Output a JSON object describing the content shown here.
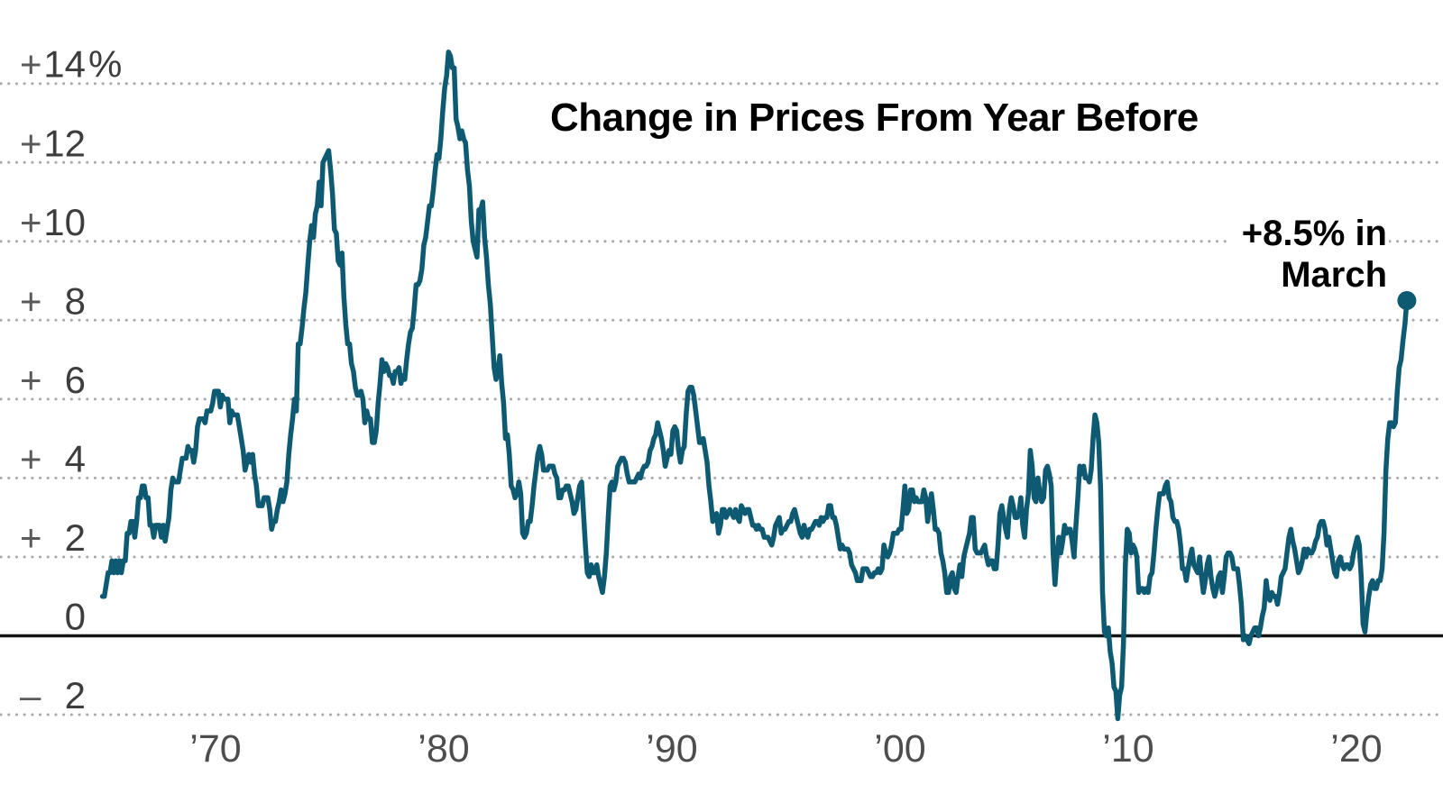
{
  "title": "Change in Prices From Year Before",
  "annotation": {
    "line1": "+8.5% in",
    "line2": "March"
  },
  "colors": {
    "line": "#0e5a73",
    "grid": "#a9a9a9",
    "zero_axis": "#141414",
    "y_label_sign": "#5a5a5a",
    "y_label_num": "#3d3d3d",
    "x_label": "#4d4d4d",
    "title": "#000000",
    "annotation": "#000000"
  },
  "y_axis": {
    "labels": [
      {
        "value": 14,
        "sign": "+",
        "num": "14",
        "suffix": "%"
      },
      {
        "value": 12,
        "sign": "+",
        "num": "12",
        "suffix": ""
      },
      {
        "value": 10,
        "sign": "+",
        "num": "10",
        "suffix": ""
      },
      {
        "value": 8,
        "sign": "+",
        "num": "8",
        "suffix": ""
      },
      {
        "value": 6,
        "sign": "+",
        "num": "6",
        "suffix": ""
      },
      {
        "value": 4,
        "sign": "+",
        "num": "4",
        "suffix": ""
      },
      {
        "value": 2,
        "sign": "+",
        "num": "2",
        "suffix": ""
      },
      {
        "value": 0,
        "sign": "",
        "num": "0",
        "suffix": ""
      },
      {
        "value": -2,
        "sign": "–",
        "num": "2",
        "suffix": ""
      }
    ]
  },
  "x_axis": {
    "labels": [
      {
        "year": 1970,
        "text": "’70"
      },
      {
        "year": 1980,
        "text": "’80"
      },
      {
        "year": 1990,
        "text": "’90"
      },
      {
        "year": 2000,
        "text": "’00"
      },
      {
        "year": 2010,
        "text": "’10"
      },
      {
        "year": 2020,
        "text": "’20"
      }
    ]
  },
  "chart_data": {
    "type": "line",
    "title": "Change in Prices From Year Before",
    "frequency": "monthly",
    "start_year": 1965,
    "start_month": 1,
    "ylim": [
      -2.8,
      15
    ],
    "xlim": [
      1964.8,
      2022.6
    ],
    "grid": "dotted horizontal lines every 2 percentage points, solid line at 0",
    "legend_position": "none",
    "last_point": {
      "year": 2022,
      "month": "March",
      "value": 8.5,
      "label": "+8.5% in March"
    },
    "values": [
      1.0,
      1.0,
      1.3,
      1.6,
      1.6,
      1.9,
      1.6,
      1.9,
      1.6,
      1.9,
      1.6,
      1.9,
      1.9,
      2.6,
      2.6,
      2.9,
      2.9,
      2.5,
      2.9,
      3.5,
      3.5,
      3.8,
      3.8,
      3.5,
      3.5,
      2.8,
      2.8,
      2.5,
      2.8,
      2.8,
      2.8,
      2.5,
      2.8,
      2.4,
      2.7,
      3.0,
      3.7,
      4.0,
      3.9,
      3.9,
      3.9,
      4.2,
      4.5,
      4.5,
      4.5,
      4.8,
      4.7,
      4.7,
      4.4,
      4.7,
      5.3,
      5.5,
      5.5,
      5.5,
      5.4,
      5.7,
      5.7,
      5.7,
      5.9,
      6.2,
      6.2,
      6.2,
      5.8,
      6.1,
      6.0,
      6.0,
      6.0,
      5.4,
      5.7,
      5.6,
      5.6,
      5.6,
      5.3,
      5.0,
      4.7,
      4.2,
      4.4,
      4.6,
      4.4,
      4.6,
      4.1,
      3.8,
      3.3,
      3.3,
      3.3,
      3.5,
      3.5,
      3.5,
      3.2,
      2.7,
      2.9,
      2.9,
      3.2,
      3.4,
      3.7,
      3.4,
      3.6,
      3.9,
      4.6,
      5.1,
      5.5,
      6.0,
      5.7,
      7.4,
      7.4,
      7.8,
      8.3,
      8.7,
      9.4,
      10.0,
      10.4,
      10.1,
      10.7,
      10.9,
      11.5,
      10.9,
      12.0,
      12.1,
      12.2,
      12.3,
      11.8,
      11.2,
      10.3,
      10.2,
      9.5,
      9.4,
      9.7,
      8.6,
      7.9,
      7.4,
      7.4,
      6.9,
      6.7,
      6.3,
      6.1,
      6.1,
      6.2,
      6.0,
      5.4,
      5.7,
      5.5,
      5.5,
      4.9,
      4.9,
      5.2,
      5.9,
      6.4,
      7.0,
      6.7,
      6.9,
      6.8,
      6.6,
      6.6,
      6.4,
      6.7,
      6.7,
      6.8,
      6.4,
      6.6,
      6.5,
      7.0,
      7.4,
      7.7,
      7.8,
      8.3,
      8.9,
      8.9,
      9.0,
      9.3,
      9.9,
      10.1,
      10.5,
      10.9,
      10.9,
      11.3,
      11.8,
      12.2,
      12.1,
      12.6,
      13.3,
      13.9,
      14.2,
      14.8,
      14.7,
      14.4,
      14.4,
      13.1,
      12.9,
      12.6,
      12.8,
      12.6,
      12.5,
      11.8,
      11.4,
      10.5,
      10.0,
      9.8,
      9.6,
      10.8,
      10.8,
      11.0,
      10.1,
      9.6,
      8.9,
      8.4,
      7.6,
      6.8,
      6.5,
      6.7,
      7.1,
      6.4,
      5.9,
      5.0,
      5.1,
      4.6,
      3.8,
      3.7,
      3.5,
      3.6,
      3.9,
      3.6,
      2.6,
      2.5,
      2.6,
      2.9,
      2.9,
      3.3,
      3.8,
      4.2,
      4.6,
      4.8,
      4.6,
      4.2,
      4.2,
      4.2,
      4.3,
      4.3,
      4.3,
      4.1,
      4.0,
      3.5,
      3.5,
      3.7,
      3.7,
      3.8,
      3.8,
      3.6,
      3.4,
      3.1,
      3.2,
      3.5,
      3.8,
      3.9,
      3.1,
      2.3,
      1.6,
      1.5,
      1.8,
      1.6,
      1.6,
      1.8,
      1.5,
      1.3,
      1.1,
      1.5,
      2.1,
      3.0,
      3.8,
      3.9,
      3.7,
      3.9,
      4.3,
      4.4,
      4.5,
      4.5,
      4.4,
      4.1,
      3.9,
      3.9,
      3.9,
      3.9,
      4.0,
      4.1,
      4.0,
      4.2,
      4.3,
      4.3,
      4.4,
      4.7,
      4.8,
      5.0,
      5.1,
      5.4,
      5.2,
      5.0,
      4.7,
      4.3,
      4.5,
      4.7,
      4.6,
      5.2,
      5.3,
      5.2,
      4.7,
      4.4,
      4.7,
      4.8,
      5.6,
      6.2,
      6.3,
      6.3,
      6.1,
      5.7,
      5.3,
      4.9,
      4.9,
      5.0,
      4.7,
      4.4,
      3.8,
      3.4,
      2.9,
      3.0,
      3.1,
      2.6,
      2.8,
      3.2,
      3.2,
      3.0,
      3.1,
      3.2,
      3.1,
      3.0,
      3.2,
      3.0,
      2.9,
      3.3,
      3.2,
      3.1,
      3.2,
      3.2,
      3.0,
      2.8,
      2.8,
      2.7,
      2.8,
      2.7,
      2.7,
      2.5,
      2.5,
      2.5,
      2.4,
      2.3,
      2.5,
      2.8,
      2.9,
      3.0,
      2.6,
      2.7,
      2.7,
      2.8,
      2.9,
      2.9,
      3.1,
      3.2,
      3.0,
      2.8,
      2.6,
      2.5,
      2.8,
      2.6,
      2.5,
      2.7,
      2.7,
      2.8,
      2.9,
      2.9,
      2.8,
      3.0,
      2.9,
      3.0,
      3.0,
      3.3,
      3.3,
      3.0,
      3.0,
      2.8,
      2.5,
      2.2,
      2.3,
      2.2,
      2.2,
      2.2,
      2.1,
      1.8,
      1.7,
      1.6,
      1.4,
      1.4,
      1.4,
      1.7,
      1.7,
      1.7,
      1.6,
      1.5,
      1.5,
      1.6,
      1.6,
      1.7,
      1.6,
      1.7,
      2.3,
      2.1,
      2.0,
      2.1,
      2.3,
      2.6,
      2.6,
      2.6,
      2.7,
      2.7,
      3.2,
      3.8,
      3.1,
      3.2,
      3.7,
      3.7,
      3.4,
      3.5,
      3.4,
      3.4,
      3.4,
      3.7,
      3.5,
      2.9,
      3.3,
      3.6,
      3.2,
      2.7,
      2.7,
      2.6,
      2.1,
      1.9,
      1.6,
      1.1,
      1.1,
      1.5,
      1.6,
      1.2,
      1.1,
      1.5,
      1.8,
      1.5,
      2.0,
      2.2,
      2.4,
      2.6,
      3.0,
      3.0,
      2.2,
      2.1,
      2.1,
      2.1,
      2.2,
      2.3,
      2.0,
      1.8,
      1.9,
      1.9,
      1.7,
      1.7,
      2.3,
      3.1,
      3.3,
      3.0,
      2.7,
      2.5,
      3.2,
      3.5,
      3.3,
      3.0,
      3.0,
      3.1,
      3.5,
      2.8,
      2.5,
      3.2,
      3.6,
      4.7,
      4.3,
      3.5,
      3.4,
      4.0,
      3.6,
      3.4,
      3.5,
      4.2,
      4.3,
      4.1,
      3.8,
      2.1,
      1.3,
      2.0,
      2.5,
      2.1,
      2.4,
      2.8,
      2.6,
      2.7,
      2.7,
      2.4,
      2.0,
      2.8,
      3.5,
      4.3,
      4.1,
      4.3,
      4.0,
      4.0,
      3.9,
      4.2,
      5.0,
      5.6,
      5.4,
      4.9,
      3.7,
      1.1,
      0.1,
      0.0,
      0.2,
      -0.4,
      -0.7,
      -1.3,
      -1.4,
      -2.1,
      -1.5,
      -1.3,
      -0.2,
      1.8,
      2.7,
      2.6,
      2.1,
      2.3,
      2.2,
      2.0,
      1.1,
      1.2,
      1.2,
      1.1,
      1.2,
      1.1,
      1.5,
      1.6,
      2.1,
      2.7,
      3.2,
      3.6,
      3.6,
      3.6,
      3.8,
      3.9,
      3.5,
      3.4,
      3.0,
      2.9,
      2.9,
      2.7,
      2.3,
      1.7,
      1.7,
      1.4,
      1.7,
      2.0,
      2.2,
      1.8,
      1.7,
      1.6,
      2.0,
      1.5,
      1.1,
      1.4,
      1.8,
      2.0,
      1.5,
      1.2,
      1.0,
      1.2,
      1.5,
      1.6,
      1.1,
      1.5,
      2.0,
      2.1,
      2.1,
      2.0,
      1.7,
      1.7,
      1.7,
      1.3,
      0.8,
      -0.1,
      0.0,
      -0.1,
      -0.2,
      0.0,
      0.1,
      0.2,
      0.2,
      0.0,
      0.2,
      0.5,
      0.7,
      1.4,
      1.0,
      0.9,
      1.1,
      1.0,
      1.0,
      0.8,
      1.1,
      1.5,
      1.6,
      1.7,
      2.1,
      2.5,
      2.7,
      2.4,
      2.2,
      1.9,
      1.6,
      1.7,
      1.9,
      2.2,
      2.0,
      2.2,
      2.1,
      2.1,
      2.2,
      2.4,
      2.5,
      2.8,
      2.9,
      2.9,
      2.7,
      2.3,
      2.5,
      2.2,
      1.9,
      1.6,
      1.5,
      1.9,
      2.0,
      1.8,
      1.7,
      1.8,
      1.8,
      1.7,
      1.8,
      2.1,
      2.3,
      2.5,
      2.3,
      1.5,
      0.3,
      0.1,
      0.6,
      1.0,
      1.3,
      1.4,
      1.2,
      1.2,
      1.4,
      1.4,
      1.7,
      2.6,
      4.2,
      5.0,
      5.4,
      5.4,
      5.3,
      5.4,
      6.2,
      6.8,
      7.0,
      7.5,
      7.9,
      8.5
    ]
  }
}
